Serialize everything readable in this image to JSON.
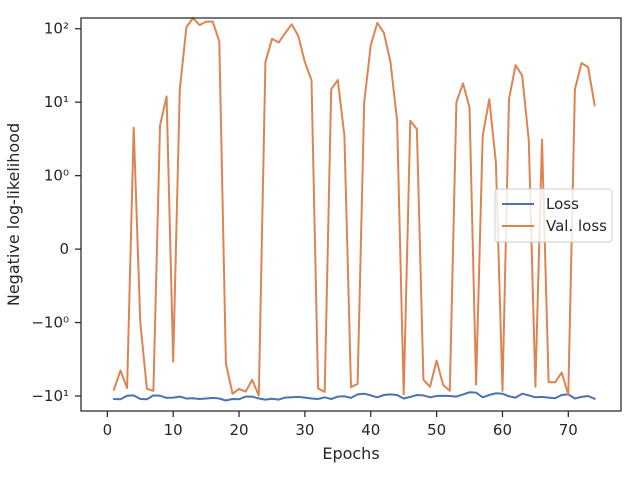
{
  "chart_data": {
    "type": "line",
    "title": "",
    "xlabel": "Epochs",
    "ylabel": "Negative log-likelihood",
    "xlim": [
      -4,
      78
    ],
    "ylim": [
      -16,
      140
    ],
    "yscale": "symlog",
    "grid": false,
    "legend_placement": "center-right",
    "x_ticks": [
      0,
      10,
      20,
      30,
      40,
      50,
      60,
      70
    ],
    "y_ticks": [
      {
        "value": -10,
        "label": "−10¹"
      },
      {
        "value": -1,
        "label": "−10⁰"
      },
      {
        "value": 0,
        "label": "0"
      },
      {
        "value": 1,
        "label": "10⁰"
      },
      {
        "value": 10,
        "label": "10¹"
      },
      {
        "value": 100,
        "label": "10²"
      }
    ],
    "series": [
      {
        "name": "Loss",
        "color": "#4c72b0",
        "x": [
          1,
          2,
          3,
          4,
          5,
          6,
          7,
          8,
          9,
          10,
          11,
          12,
          13,
          14,
          15,
          16,
          17,
          18,
          19,
          20,
          21,
          22,
          23,
          24,
          25,
          26,
          27,
          28,
          29,
          30,
          31,
          32,
          33,
          34,
          35,
          36,
          37,
          38,
          39,
          40,
          41,
          42,
          43,
          44,
          45,
          46,
          47,
          48,
          49,
          50,
          51,
          52,
          53,
          54,
          55,
          56,
          57,
          58,
          59,
          60,
          61,
          62,
          63,
          64,
          65,
          66,
          67,
          68,
          69,
          70,
          71,
          72,
          73,
          74
        ],
        "values": [
          -11.0,
          -11.1,
          -9.9,
          -9.8,
          -11.0,
          -11.1,
          -9.8,
          -9.9,
          -10.6,
          -10.5,
          -10.2,
          -10.8,
          -10.7,
          -11.0,
          -10.8,
          -10.6,
          -10.8,
          -11.5,
          -11.0,
          -11.1,
          -10.2,
          -10.2,
          -10.8,
          -11.2,
          -10.9,
          -11.2,
          -10.5,
          -10.4,
          -10.3,
          -10.5,
          -10.8,
          -11.0,
          -10.4,
          -11.0,
          -10.2,
          -10.1,
          -10.6,
          -9.5,
          -9.3,
          -9.8,
          -10.4,
          -9.7,
          -9.5,
          -9.7,
          -10.8,
          -10.3,
          -9.7,
          -9.8,
          -10.4,
          -10.0,
          -9.9,
          -10.0,
          -10.2,
          -9.5,
          -8.9,
          -9.0,
          -10.4,
          -9.7,
          -9.2,
          -9.3,
          -10.1,
          -10.5,
          -9.3,
          -9.8,
          -10.4,
          -10.3,
          -10.5,
          -10.7,
          -9.7,
          -9.5,
          -10.8,
          -10.3,
          -10.0,
          -10.9
        ]
      },
      {
        "name": "Val. loss",
        "color": "#dd8452",
        "x": [
          1,
          2,
          3,
          4,
          5,
          6,
          7,
          8,
          9,
          10,
          11,
          12,
          13,
          14,
          15,
          16,
          17,
          18,
          19,
          20,
          21,
          22,
          23,
          24,
          25,
          26,
          27,
          28,
          29,
          30,
          31,
          32,
          33,
          34,
          35,
          36,
          37,
          38,
          39,
          40,
          41,
          42,
          43,
          44,
          45,
          46,
          47,
          48,
          49,
          50,
          51,
          52,
          53,
          54,
          55,
          56,
          57,
          58,
          59,
          60,
          61,
          62,
          63,
          64,
          65,
          66,
          67,
          68,
          69,
          70,
          71,
          72,
          73,
          74
        ],
        "values": [
          -8.2,
          -4.5,
          -7.8,
          4.5,
          -1.0,
          -8.0,
          -8.5,
          4.8,
          12.0,
          -3.4,
          15.0,
          105,
          140,
          112,
          125,
          125,
          67,
          -3.6,
          -9.3,
          -8.0,
          -8.7,
          -6.0,
          -9.9,
          35,
          73,
          65,
          87,
          115,
          80,
          35,
          20,
          -7.9,
          -8.8,
          15,
          20,
          3.5,
          -7.6,
          -6.8,
          10,
          60,
          120,
          88,
          35,
          5.6,
          -9.5,
          5.6,
          4.3,
          -6.0,
          -7.5,
          -3.3,
          -7.1,
          -8.5,
          10,
          18,
          8.5,
          -7.0,
          3.5,
          11,
          1.5,
          -8.5,
          11,
          32,
          23,
          3.0,
          -7.5,
          3.1,
          -6.5,
          -6.5,
          -4.8,
          -9.6,
          15,
          34,
          30,
          9.0
        ]
      }
    ]
  }
}
